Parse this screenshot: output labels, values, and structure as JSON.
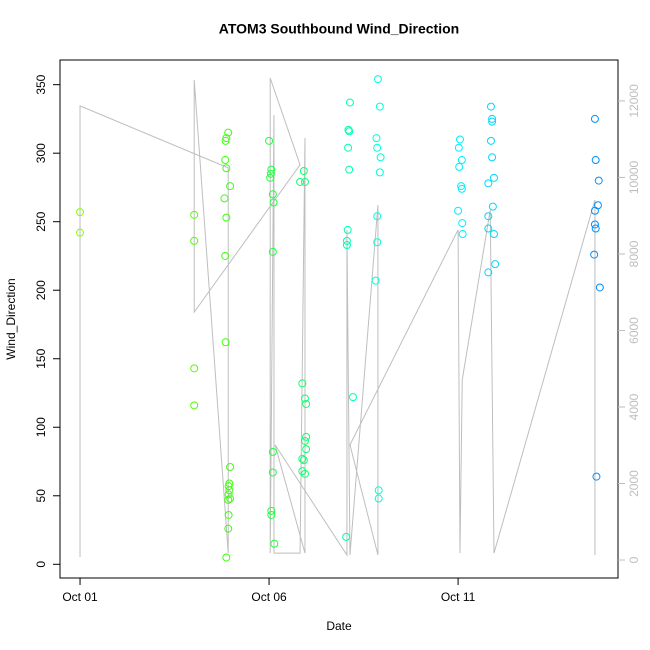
{
  "chart_data": {
    "type": "scatter",
    "title": "ATOM3 Southbound Wind_Direction",
    "x_label": "Date",
    "y_label": "Wind_Direction",
    "xlim": [
      0.47,
      15.23
    ],
    "xticks": [
      {
        "value": 1,
        "label": "Oct 01"
      },
      {
        "value": 6,
        "label": "Oct 06"
      },
      {
        "value": 11,
        "label": "Oct 11"
      }
    ],
    "ylim": [
      -10,
      368
    ],
    "yticks": [
      0,
      50,
      100,
      150,
      200,
      250,
      300,
      350
    ],
    "y2lim": [
      -470,
      13070
    ],
    "y2ticks": [
      0,
      2000,
      4000,
      6000,
      8000,
      10000,
      12000
    ],
    "y2_color": "#bebebe",
    "series": [
      {
        "type": "line",
        "axis": "y2",
        "color": "#bebebe",
        "x": [
          1.0,
          1.0,
          4.92,
          4.92,
          4.02,
          4.02,
          6.82,
          6.03,
          6.03,
          6.13,
          6.13,
          6.82,
          6.95,
          6.95,
          6.16,
          8.06,
          8.06,
          8.14,
          8.88,
          8.88,
          8.14,
          11.0,
          11.05,
          11.11,
          11.85,
          11.95,
          14.62,
          14.62
        ],
        "values": [
          80,
          11870,
          10250,
          180,
          12550,
          6480,
          10330,
          12600,
          180,
          11630,
          180,
          180,
          11030,
          180,
          3010,
          130,
          8630,
          130,
          9280,
          130,
          3010,
          8630,
          180,
          4710,
          9150,
          180,
          9410,
          130
        ]
      },
      {
        "color": "#80ff00",
        "x": [
          1.0,
          1.0
        ],
        "values": [
          257,
          242
        ]
      },
      {
        "color": "#55ff00",
        "x": [
          4.02,
          4.02,
          4.02,
          4.02
        ],
        "values": [
          255,
          236,
          143,
          116
        ]
      },
      {
        "color": "#3fff10",
        "x": [
          4.84,
          4.92,
          4.87,
          4.85,
          4.87,
          4.82,
          4.87,
          4.84,
          4.85,
          4.97,
          4.95,
          4.93,
          4.95,
          4.93,
          4.97,
          4.92,
          4.93,
          4.92,
          4.87,
          4.97
        ],
        "values": [
          295,
          315,
          311,
          309,
          289,
          267,
          253,
          225,
          162,
          71,
          59,
          57,
          54,
          51,
          48,
          47,
          36,
          26,
          5,
          276
        ]
      },
      {
        "color": "#20ff40",
        "x": [
          6.0,
          6.06,
          6.05,
          6.03,
          6.1,
          6.12,
          6.1,
          6.1,
          6.1,
          6.06,
          6.06,
          6.14
        ],
        "values": [
          309,
          288,
          285,
          282,
          270,
          264,
          228,
          82,
          67,
          39,
          36,
          15
        ]
      },
      {
        "color": "#10ff70",
        "x": [
          6.82,
          6.95,
          6.92,
          6.88,
          6.95,
          6.98,
          6.98,
          6.95,
          6.98,
          6.88,
          6.92,
          6.88,
          6.95
        ],
        "values": [
          279,
          279,
          287,
          132,
          121,
          117,
          93,
          90,
          84,
          77,
          76,
          68,
          66
        ]
      },
      {
        "color": "#00ffb0",
        "x": [
          8.14,
          8.1,
          8.12,
          8.09,
          8.12,
          8.08,
          8.06,
          8.06,
          8.22,
          8.04
        ],
        "values": [
          337,
          317,
          316,
          304,
          288,
          244,
          236,
          233,
          122,
          20
        ]
      },
      {
        "color": "#00ffd8",
        "x": [
          8.88,
          8.93,
          8.84,
          8.86,
          8.95,
          8.93,
          8.86,
          8.86,
          8.82,
          8.9,
          8.9
        ],
        "values": [
          354,
          334,
          311,
          304,
          297,
          286,
          254,
          235,
          207,
          54,
          48
        ]
      },
      {
        "color": "#00f0ff",
        "x": [
          11.05,
          11.02,
          11.1,
          11.03,
          11.08,
          11.1,
          11.0,
          11.11,
          11.12
        ],
        "values": [
          310,
          304,
          295,
          290,
          276,
          274,
          258,
          249,
          241
        ]
      },
      {
        "color": "#00d8ff",
        "x": [
          11.87,
          11.9,
          11.9,
          11.87,
          11.9,
          11.95,
          11.8,
          11.92,
          11.8,
          11.8,
          11.95,
          11.98,
          11.8
        ],
        "values": [
          334,
          325,
          323,
          309,
          297,
          282,
          278,
          261,
          254,
          245,
          241,
          219,
          213
        ]
      },
      {
        "color": "#0090ff",
        "x": [
          14.62,
          14.64,
          14.72,
          14.7,
          14.62,
          14.62,
          14.64,
          14.6,
          14.75,
          14.66
        ],
        "values": [
          325,
          295,
          280,
          262,
          258,
          248,
          245,
          226,
          202,
          64
        ]
      }
    ]
  }
}
